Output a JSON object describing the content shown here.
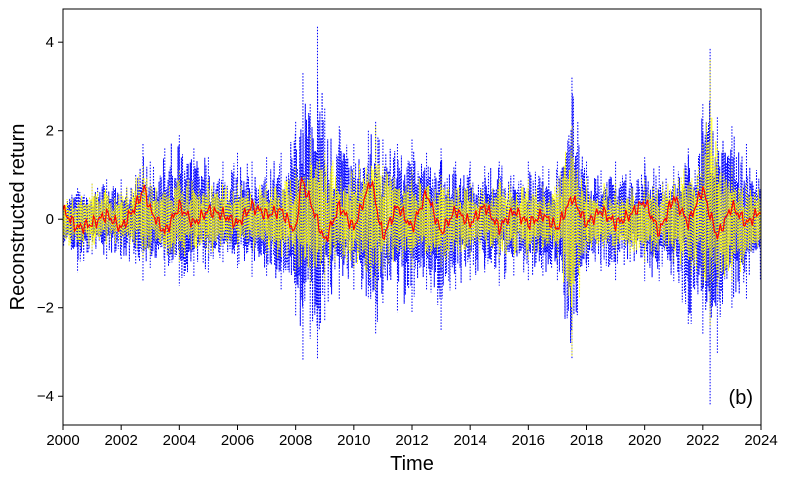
{
  "chart_data": {
    "type": "line",
    "xlabel": "Time",
    "ylabel": "Reconstructed return",
    "xlim": [
      2000,
      2024
    ],
    "ylim": [
      -4.65,
      4.75
    ],
    "xticks": [
      2000,
      2002,
      2004,
      2006,
      2008,
      2010,
      2012,
      2014,
      2016,
      2018,
      2020,
      2022,
      2024
    ],
    "xtick_labels": [
      "2000",
      "2002",
      "2004",
      "2006",
      "2008",
      "2010",
      "2012",
      "2014",
      "2016",
      "2018",
      "2020",
      "2022",
      "2024"
    ],
    "yticks": [
      -4,
      -2,
      0,
      2,
      4
    ],
    "ytick_labels": [
      "−4",
      "−2",
      "0",
      "2",
      "4"
    ],
    "annotation": "(b)",
    "grid": false,
    "series_colors": {
      "blue": "#0000ff",
      "yellow": "#ffff00",
      "red": "#ff0000"
    },
    "series": [
      {
        "color": "blue",
        "style": "dotted",
        "x": [
          2000,
          2000.5,
          2001,
          2001.5,
          2002,
          2002.5,
          2002.75,
          2003,
          2003.5,
          2004,
          2004.5,
          2005,
          2005.5,
          2006,
          2006.5,
          2007,
          2007.5,
          2008,
          2008.25,
          2008.5,
          2008.75,
          2009,
          2009.5,
          2010,
          2010.5,
          2010.75,
          2011,
          2011.5,
          2012,
          2012.5,
          2013,
          2013.5,
          2014,
          2014.5,
          2015,
          2015.5,
          2016,
          2016.5,
          2017,
          2017.5,
          2018,
          2018.5,
          2019,
          2019.5,
          2020,
          2020.5,
          2021,
          2021.5,
          2022,
          2022.25,
          2022.5,
          2023,
          2023.5,
          2024
        ],
        "upper": [
          0.6,
          0.7,
          0.8,
          0.9,
          0.9,
          1.0,
          1.7,
          1.3,
          1.6,
          1.9,
          1.6,
          1.4,
          1.3,
          1.5,
          1.3,
          1.4,
          1.5,
          2.2,
          3.3,
          2.6,
          4.35,
          2.5,
          2.1,
          1.7,
          2.0,
          2.2,
          1.8,
          1.7,
          1.8,
          1.5,
          1.6,
          1.3,
          1.3,
          1.2,
          1.3,
          1.0,
          1.3,
          1.2,
          1.3,
          3.2,
          1.3,
          1.1,
          1.3,
          1.1,
          1.4,
          1.2,
          1.2,
          1.6,
          2.6,
          3.85,
          2.3,
          2.1,
          1.7,
          1.0
        ],
        "lower": [
          -0.7,
          -1.2,
          -0.8,
          -0.9,
          -0.9,
          -1.0,
          -1.4,
          -1.1,
          -1.3,
          -1.5,
          -1.3,
          -1.2,
          -1.0,
          -1.1,
          -1.3,
          -1.3,
          -1.6,
          -2.2,
          -3.2,
          -2.7,
          -3.15,
          -2.3,
          -1.8,
          -1.6,
          -1.8,
          -2.6,
          -1.9,
          -2.1,
          -2.1,
          -1.6,
          -2.5,
          -1.6,
          -1.4,
          -1.2,
          -1.5,
          -1.3,
          -1.4,
          -1.3,
          -1.4,
          -3.15,
          -1.2,
          -1.2,
          -1.4,
          -1.0,
          -1.4,
          -1.4,
          -1.4,
          -2.4,
          -2.6,
          -4.2,
          -3.05,
          -2.0,
          -1.8,
          -1.5
        ]
      },
      {
        "color": "yellow",
        "style": "dotted",
        "x": [
          2000,
          2001,
          2002,
          2002.75,
          2003,
          2004,
          2005,
          2006,
          2007,
          2008,
          2008.5,
          2009,
          2010,
          2010.75,
          2011,
          2012,
          2013,
          2014,
          2015,
          2016,
          2017,
          2017.5,
          2018,
          2019,
          2020,
          2021,
          2022,
          2022.25,
          2022.5,
          2023,
          2024
        ],
        "upper": [
          0.5,
          0.8,
          0.6,
          1.2,
          0.8,
          1.1,
          0.9,
          0.8,
          0.8,
          1.2,
          1.9,
          1.5,
          1.1,
          2.1,
          1.2,
          1.1,
          1.0,
          0.8,
          0.9,
          0.9,
          0.9,
          2.1,
          0.9,
          0.8,
          0.9,
          0.9,
          1.7,
          3.6,
          1.6,
          1.2,
          0.7
        ],
        "lower": [
          -0.6,
          -0.7,
          -0.6,
          -0.9,
          -0.8,
          -1.0,
          -0.8,
          -0.7,
          -0.8,
          -1.2,
          -1.5,
          -1.4,
          -1.1,
          -1.6,
          -1.2,
          -1.1,
          -1.1,
          -0.8,
          -0.9,
          -0.9,
          -0.9,
          -3.1,
          -0.8,
          -0.8,
          -1.0,
          -1.0,
          -1.5,
          -2.4,
          -1.7,
          -1.4,
          -1.0
        ]
      },
      {
        "color": "red",
        "style": "solid",
        "x": [
          2000,
          2000.5,
          2001,
          2001.5,
          2002,
          2002.5,
          2002.8,
          2003,
          2003.5,
          2004,
          2004.5,
          2005,
          2005.5,
          2006,
          2006.5,
          2007,
          2007.5,
          2008,
          2008.2,
          2008.5,
          2009,
          2009.5,
          2010,
          2010.6,
          2010.8,
          2011,
          2011.5,
          2012,
          2012.5,
          2013,
          2013.5,
          2014,
          2014.5,
          2015,
          2015.5,
          2016,
          2016.5,
          2017,
          2017.5,
          2018,
          2018.5,
          2019,
          2019.5,
          2020,
          2020.5,
          2021,
          2021.5,
          2022,
          2022.2,
          2022.5,
          2023,
          2023.5,
          2024
        ],
        "values": [
          0.2,
          -0.2,
          -0.1,
          0.1,
          -0.2,
          0.3,
          0.7,
          0.2,
          -0.3,
          0.3,
          -0.1,
          0.2,
          0.1,
          -0.1,
          0.3,
          0.1,
          0.2,
          -0.3,
          0.9,
          0.4,
          -0.5,
          0.3,
          -0.2,
          0.9,
          0.2,
          -0.4,
          0.3,
          -0.2,
          0.6,
          -0.3,
          0.2,
          -0.1,
          0.3,
          -0.2,
          0.2,
          -0.1,
          0.1,
          -0.2,
          0.5,
          -0.1,
          0.2,
          -0.1,
          0.1,
          0.4,
          -0.3,
          0.5,
          -0.1,
          0.7,
          0.2,
          -0.4,
          0.3,
          -0.1,
          0.2
        ]
      }
    ]
  }
}
